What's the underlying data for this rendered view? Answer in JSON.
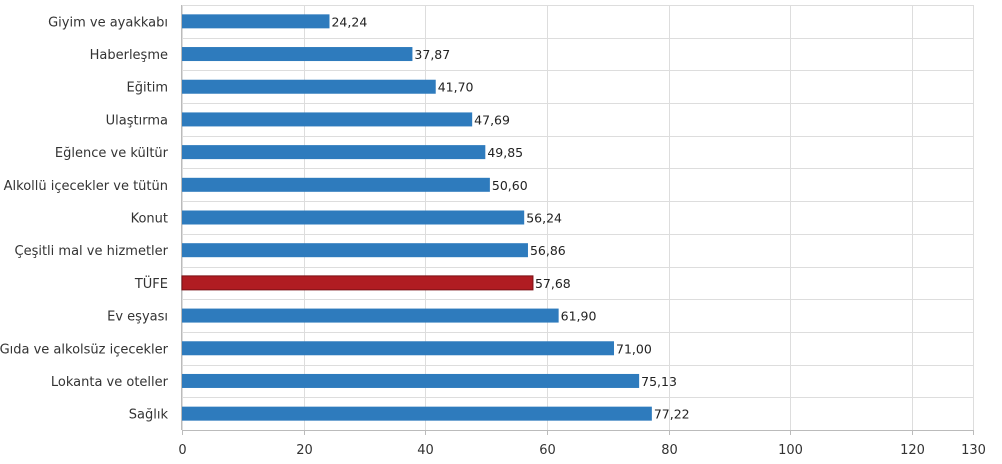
{
  "chart_data": {
    "type": "bar",
    "orientation": "horizontal",
    "title": "",
    "xlabel": "",
    "ylabel": "",
    "categories": [
      "Giyim ve ayakkabı",
      "Haberleşme",
      "Eğitim",
      "Ulaştırma",
      "Eğlence ve kültür",
      "Alkollü içecekler ve tütün",
      "Konut",
      "Çeşitli mal ve hizmetler",
      "TÜFE",
      "Ev eşyası",
      "Gıda ve alkolsüz içecekler",
      "Lokanta ve oteller",
      "Sağlık"
    ],
    "values": [
      24.24,
      37.87,
      41.7,
      47.69,
      49.85,
      50.6,
      56.24,
      56.86,
      57.68,
      61.9,
      71.0,
      75.13,
      77.22
    ],
    "value_labels": [
      "24,24",
      "37,87",
      "41,70",
      "47,69",
      "49,85",
      "50,60",
      "56,24",
      "56,86",
      "57,68",
      "61,90",
      "71,00",
      "75,13",
      "77,22"
    ],
    "xlim": [
      0,
      130
    ],
    "xticks": [
      0,
      20,
      40,
      60,
      80,
      100,
      120,
      130
    ],
    "grid": true,
    "legend": "none",
    "colors": {
      "default_bar": "#2e7bbd",
      "highlight_bar": "#b01c22",
      "grid": "#dddddd",
      "axis": "#bbbbbb"
    },
    "highlight_category": "TÜFE"
  }
}
